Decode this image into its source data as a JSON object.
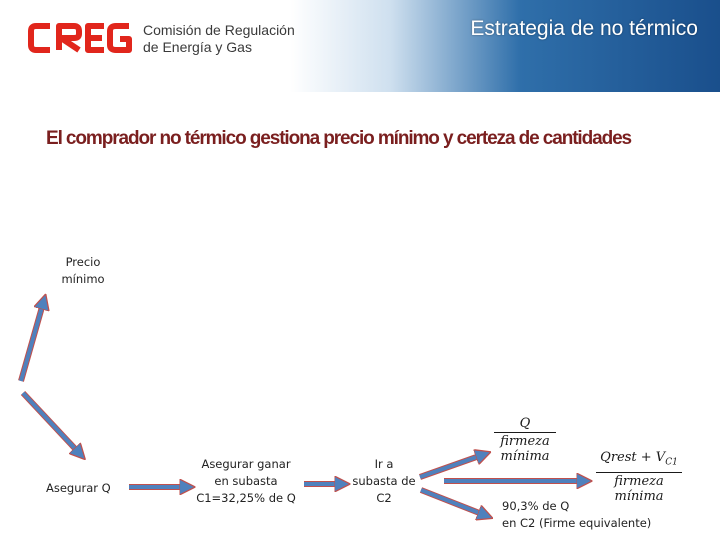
{
  "header": {
    "logo_text": "CREG",
    "org_line1": "Comisión de Regulación",
    "org_line2": "de Energía y Gas",
    "title": "Estrategia de no térmico"
  },
  "subtitle": "El comprador no térmico gestiona precio mínimo y certeza de cantidades",
  "diagram": {
    "precio_label_1": "Precio",
    "precio_label_2": "mínimo",
    "asegurar_q": "Asegurar Q",
    "ganar_1": "Asegurar ganar",
    "ganar_2": "en subasta",
    "ganar_3": "C1=32,25% de Q",
    "ir_1": "Ir a",
    "ir_2": "subasta de",
    "ir_3": "C2",
    "frac1_num": "Q",
    "frac1_den_1": "firmeza",
    "frac1_den_2": "mínima",
    "frac2_num": "Qrest + V",
    "frac2_num_sub": "C1",
    "frac2_den_1": "firmeza",
    "frac2_den_2": "mínima",
    "pct_1": "90,3% de Q",
    "pct_2": "en C2 (Firme equivalente)"
  },
  "colors": {
    "arrow_fill": "#4f81bd",
    "arrow_stroke": "#c0504d",
    "subtitle": "#7a1f1f"
  }
}
